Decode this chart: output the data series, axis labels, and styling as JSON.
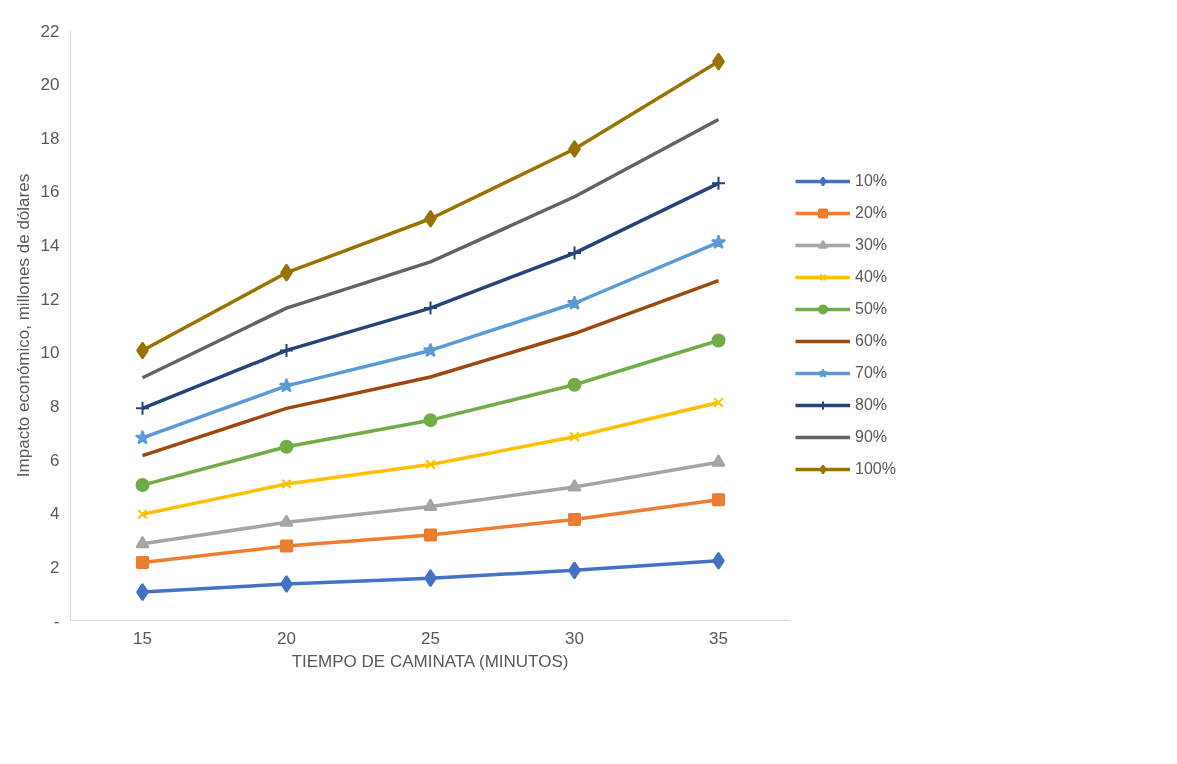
{
  "chart_data": {
    "type": "line",
    "xlabel": "TIEMPO DE CAMINATA (MINUTOS)",
    "ylabel": "Impacto económico, millones de dólares",
    "x": [
      15,
      20,
      25,
      30,
      35
    ],
    "series": [
      {
        "name": "10%",
        "color": "#4472c4",
        "marker": "diamond",
        "values": [
          1.06,
          1.36,
          1.58,
          1.87,
          2.23
        ]
      },
      {
        "name": "20%",
        "color": "#ed7d31",
        "marker": "square",
        "values": [
          2.16,
          2.78,
          3.19,
          3.77,
          4.5
        ]
      },
      {
        "name": "30%",
        "color": "#a5a5a5",
        "marker": "triangle",
        "values": [
          2.86,
          3.66,
          4.25,
          4.98,
          5.9
        ]
      },
      {
        "name": "40%",
        "color": "#ffc000",
        "marker": "x",
        "values": [
          3.96,
          5.09,
          5.82,
          6.85,
          8.13
        ]
      },
      {
        "name": "50%",
        "color": "#70ad47",
        "marker": "circle",
        "values": [
          5.05,
          6.48,
          7.47,
          8.79,
          10.44
        ]
      },
      {
        "name": "60%",
        "color": "#9e480e",
        "marker": "none",
        "values": [
          6.15,
          7.91,
          9.08,
          10.7,
          12.67
        ]
      },
      {
        "name": "70%",
        "color": "#5b9bd5",
        "marker": "star",
        "values": [
          6.81,
          8.75,
          10.07,
          11.83,
          14.1
        ]
      },
      {
        "name": "80%",
        "color": "#264478",
        "marker": "cross",
        "values": [
          7.91,
          10.07,
          11.65,
          13.7,
          16.3
        ]
      },
      {
        "name": "90%",
        "color": "#636363",
        "marker": "none",
        "values": [
          9.05,
          11.65,
          13.37,
          15.8,
          18.68
        ]
      },
      {
        "name": "100%",
        "color": "#997300",
        "marker": "diamond",
        "values": [
          10.07,
          12.97,
          14.98,
          17.58,
          20.84
        ]
      }
    ],
    "xlim": [
      12.5,
      37.5
    ],
    "xticks": [
      15,
      20,
      25,
      30,
      35
    ],
    "ylim": [
      0,
      22
    ],
    "yticks": [
      {
        "value": 0,
        "label": "-"
      },
      2,
      4,
      6,
      8,
      10,
      12,
      14,
      16,
      18,
      20,
      22
    ],
    "grid": false,
    "legend": "right",
    "line_style": "solid"
  }
}
